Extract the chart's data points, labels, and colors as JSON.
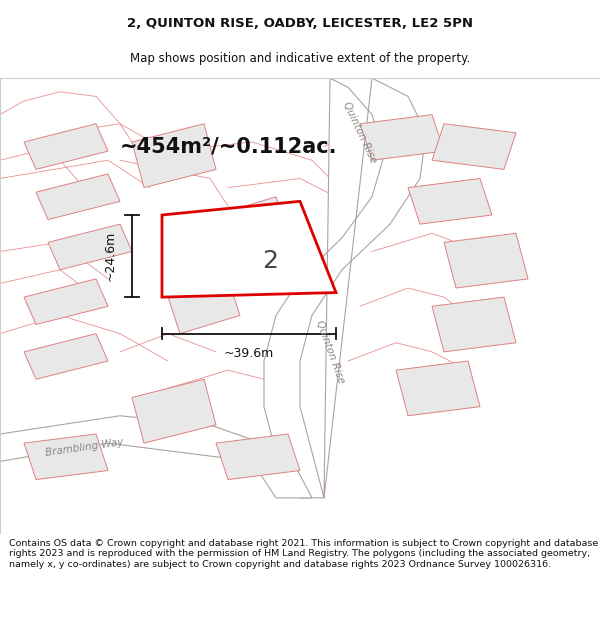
{
  "title_line1": "2, QUINTON RISE, OADBY, LEICESTER, LE2 5PN",
  "title_line2": "Map shows position and indicative extent of the property.",
  "area_text": "~454m²/~0.112ac.",
  "plot_number": "2",
  "dim_width": "~39.6m",
  "dim_height": "~24.6m",
  "road_label_upper": "Quinton Rise",
  "road_label_lower": "Quinton Rise",
  "road_label_bottom": "Brambling Way",
  "footer_text": "Contains OS data © Crown copyright and database right 2021. This information is subject to Crown copyright and database rights 2023 and is reproduced with the permission of HM Land Registry. The polygons (including the associated geometry, namely x, y co-ordinates) are subject to Crown copyright and database rights 2023 Ordnance Survey 100026316.",
  "bg_color": "#ffffff",
  "map_bg": "#f7f4f2",
  "road_fill": "#ffffff",
  "road_edge": "#b0a0a0",
  "building_fill": "#e8e8e8",
  "building_edge": "#e08080",
  "parcel_edge": "#e89090",
  "plot_fill": "#ffffff",
  "plot_edge": "#dd0000",
  "dim_color": "#111111",
  "label_color": "#888888",
  "area_color": "#111111",
  "number_color": "#444444",
  "title_fontsize": 9.5,
  "subtitle_fontsize": 8.5,
  "footer_fontsize": 6.8,
  "area_fontsize": 15,
  "number_fontsize": 18,
  "dim_fontsize": 9,
  "road_label_fontsize": 7.5
}
